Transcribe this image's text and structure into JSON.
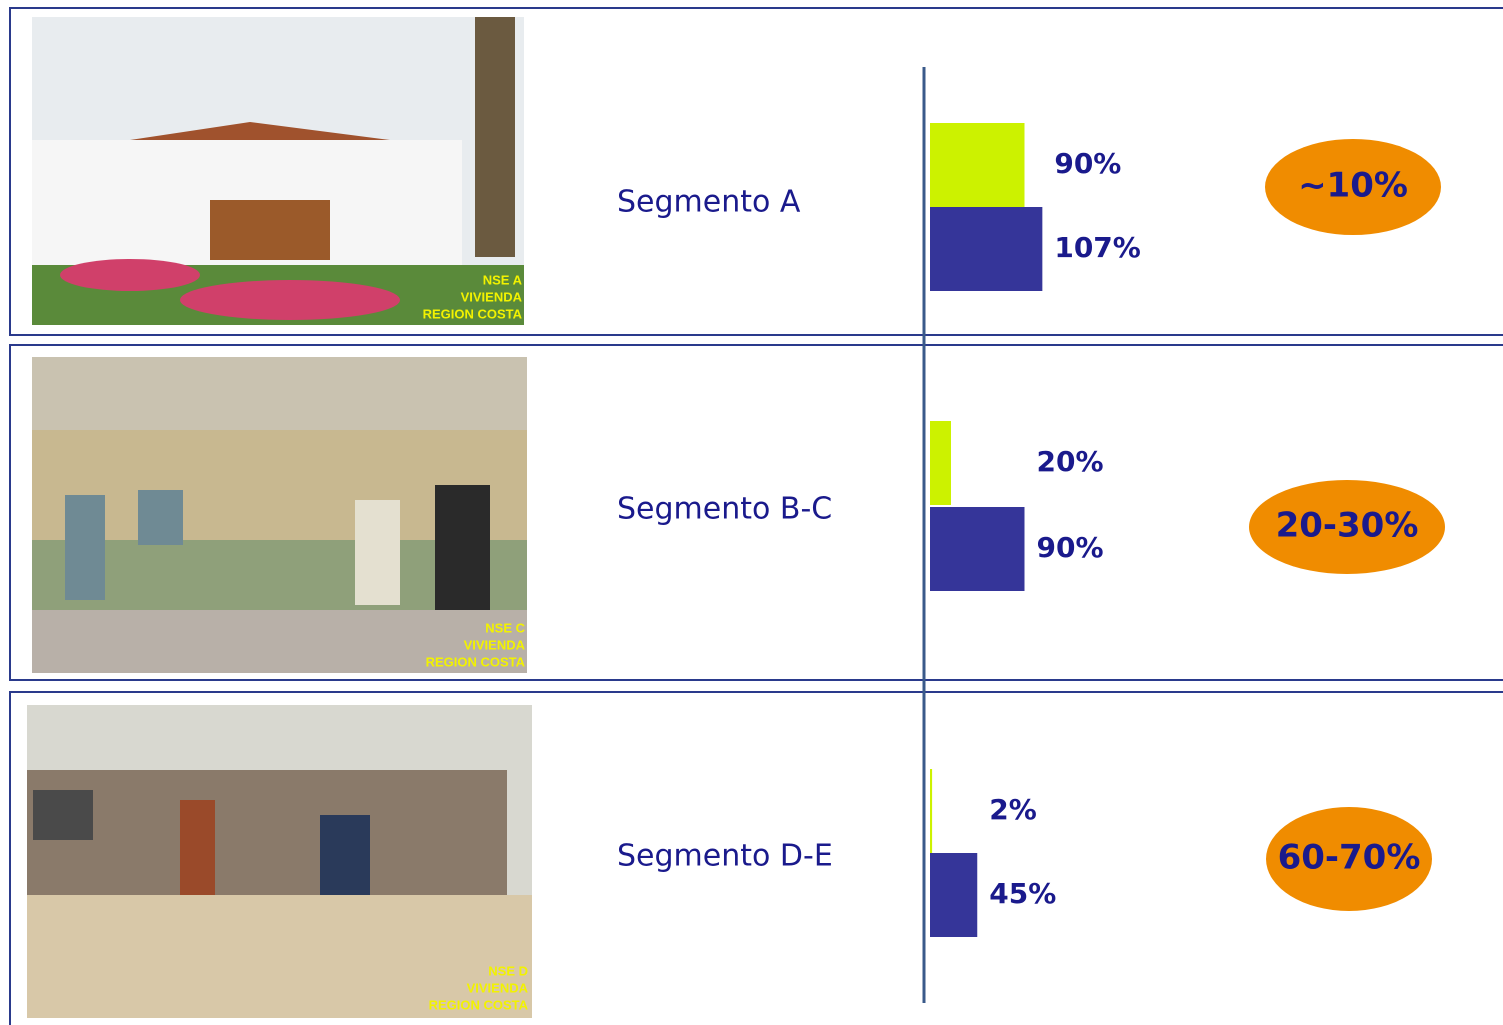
{
  "chart_data": {
    "type": "bar",
    "categories": [
      "Segmento A",
      "Segmento B-C",
      "Segmento D-E"
    ],
    "series": [
      {
        "color": "#ccf200",
        "values": [
          90,
          20,
          2
        ],
        "value_labels": [
          "90%",
          "20%",
          "2%"
        ]
      },
      {
        "color": "#353599",
        "values": [
          107,
          90,
          45
        ],
        "value_labels": [
          "107%",
          "90%",
          "45%"
        ]
      }
    ],
    "xlim": [
      0,
      100
    ],
    "annotations": [
      "~10%",
      "20-30%",
      "60-70%"
    ],
    "photo_captions": [
      [
        "NSE A",
        "VIVIENDA",
        "REGION COSTA"
      ],
      [
        "NSE C",
        "VIVIENDA",
        "REGION COSTA"
      ],
      [
        "NSE D",
        "VIVIENDA",
        "REGION COSTA"
      ]
    ]
  }
}
